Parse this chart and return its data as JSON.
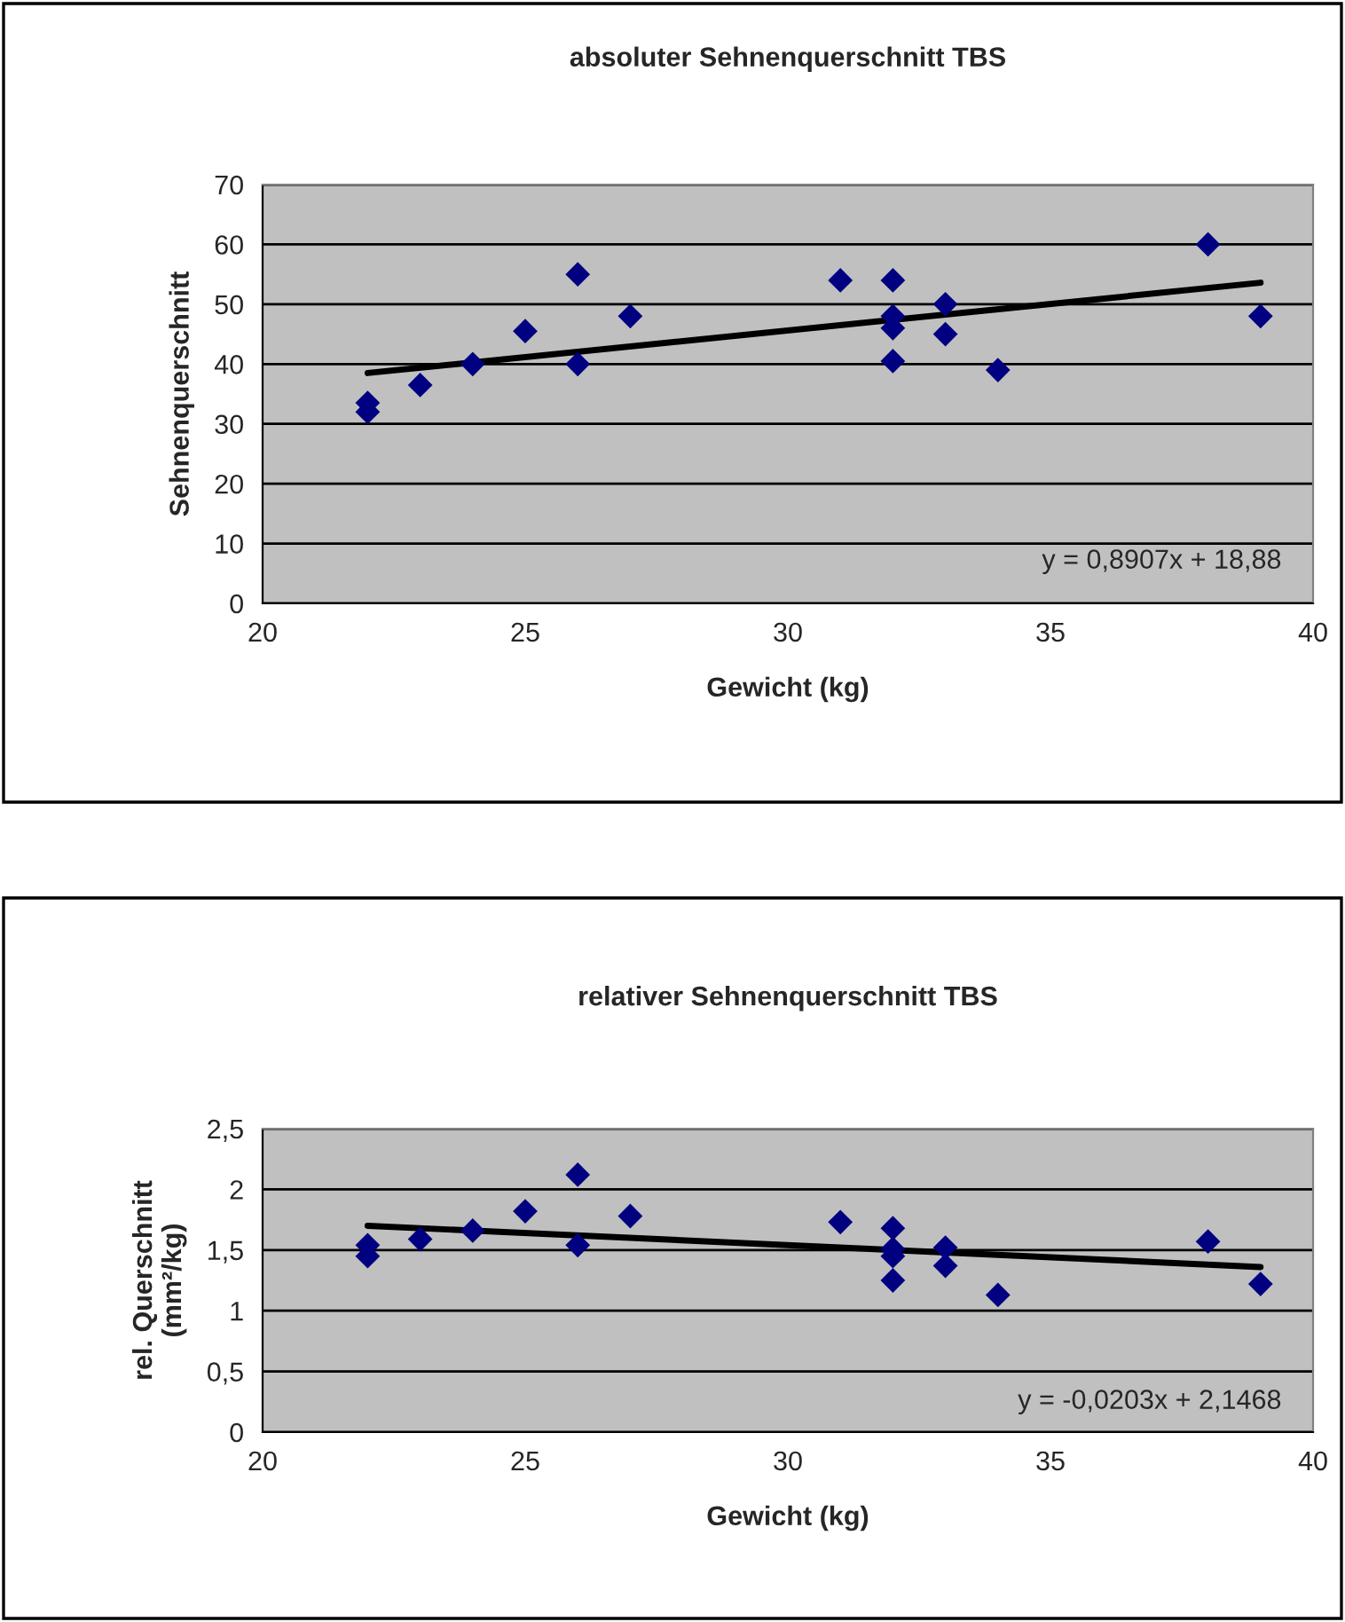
{
  "chart_data": [
    {
      "type": "scatter",
      "title": "absoluter Sehnenquerschnitt TBS",
      "xlabel": "Gewicht (kg)",
      "ylabel": "Sehnenquerschnitt",
      "xlim": [
        20,
        40
      ],
      "xticks": [
        20,
        25,
        30,
        35,
        40
      ],
      "ylim": [
        0,
        70
      ],
      "yticks": [
        0,
        10,
        20,
        30,
        40,
        50,
        60,
        70
      ],
      "grid": "y",
      "legend": false,
      "series": [
        {
          "marker": "diamond",
          "color": "#000080",
          "x": [
            22,
            22,
            23,
            24,
            25,
            26,
            26,
            27,
            31,
            32,
            32,
            32,
            32,
            33,
            33,
            34,
            38,
            39
          ],
          "values": [
            33.5,
            32,
            36.5,
            40,
            45.5,
            55,
            40,
            48,
            54,
            54,
            48,
            46,
            40.5,
            50,
            45,
            39,
            60,
            48
          ]
        },
        {
          "type": "line",
          "color": "#000000",
          "x": [
            22,
            39
          ],
          "values": [
            38.5,
            53.6
          ]
        }
      ],
      "annotations": [
        "y = 0,8907x + 18,88"
      ]
    },
    {
      "type": "scatter",
      "title": "relativer Sehnenquerschnitt TBS",
      "xlabel": "Gewicht (kg)",
      "ylabel": "rel. Querschnitt\n(mm²/kg)",
      "xlim": [
        20,
        40
      ],
      "xticks": [
        20,
        25,
        30,
        35,
        40
      ],
      "ylim": [
        0,
        2.5
      ],
      "yticks": [
        0,
        {
          "value": 0.5,
          "label": "0,5"
        },
        1,
        {
          "value": 1.5,
          "label": "1,5"
        },
        2,
        {
          "value": 2.5,
          "label": "2,5"
        }
      ],
      "grid": "y",
      "legend": false,
      "series": [
        {
          "marker": "diamond",
          "color": "#000080",
          "x": [
            22,
            22,
            23,
            24,
            25,
            26,
            26,
            27,
            31,
            32,
            32,
            32,
            32,
            33,
            33,
            34,
            38,
            39
          ],
          "values": [
            1.54,
            1.45,
            1.59,
            1.66,
            1.82,
            2.12,
            1.54,
            1.78,
            1.73,
            1.68,
            1.51,
            1.45,
            1.25,
            1.52,
            1.37,
            1.13,
            1.57,
            1.22
          ]
        },
        {
          "type": "line",
          "color": "#000000",
          "x": [
            22,
            39
          ],
          "values": [
            1.7,
            1.36
          ]
        }
      ],
      "annotations": [
        "y = -0,0203x + 2,1468"
      ]
    }
  ]
}
